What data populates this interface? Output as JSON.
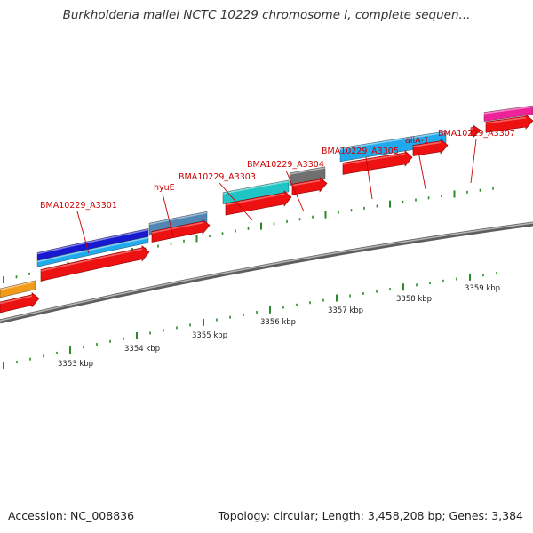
{
  "title": "Burkholderia mallei NCTC 10229 chromosome I, complete sequen...",
  "footer": {
    "accession": "Accession: NC_008836",
    "summary": "Topology: circular; Length: 3,458,208 bp; Genes: 3,384"
  },
  "colors": {
    "label_text": "#cc0000",
    "label_line": "#cc0000",
    "backbone": "#808080",
    "tick": "#2a8a2a",
    "cds_arrow": "#ee1111"
  },
  "gene_labels": [
    "BMA10229_A3301",
    "hyuE",
    "BMA10229_A3303",
    "BMA10229_A3304",
    "BMA10229_A3305",
    "allA-1",
    "BMA10229_A3307"
  ],
  "scale_labels": [
    "3353 kbp",
    "3354 kbp",
    "3355 kbp",
    "3356 kbp",
    "3357 kbp",
    "3358 kbp",
    "3359 kbp"
  ],
  "feature_colors": [
    "#f29a1a",
    "#1818d0",
    "#4f86b4",
    "#20c4c4",
    "#707070",
    "#20aaee",
    "#ee2299"
  ]
}
